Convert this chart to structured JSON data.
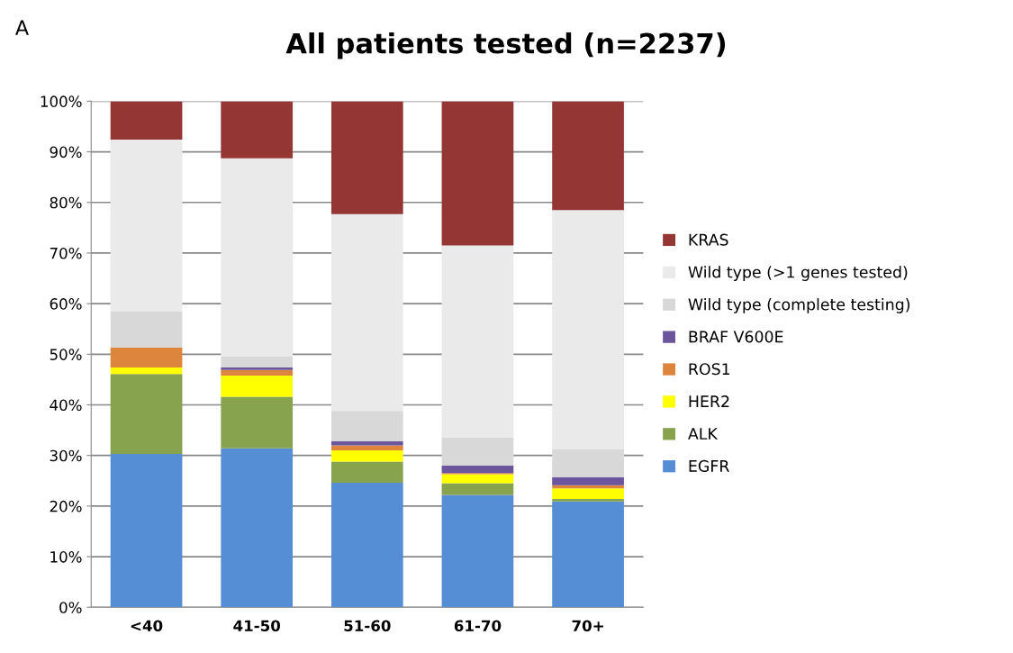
{
  "chart_data": {
    "type": "bar",
    "stacked": true,
    "title": "All patients tested (n=2237)",
    "annotations": [
      "A"
    ],
    "categories": [
      "<40",
      "41-50",
      "51-60",
      "61-70",
      "70+"
    ],
    "series": [
      {
        "name": "EGFR",
        "color": "#558ed5",
        "values": [
          30.3,
          31.4,
          24.6,
          22.2,
          20.9
        ]
      },
      {
        "name": "ALK",
        "color": "#88a34d",
        "values": [
          15.8,
          10.2,
          4.2,
          2.3,
          0.5
        ]
      },
      {
        "name": "HER2",
        "color": "#ffff00",
        "values": [
          1.3,
          4.2,
          2.2,
          1.8,
          2.1
        ]
      },
      {
        "name": "ROS1",
        "color": "#dd853c",
        "values": [
          3.9,
          1.1,
          1.0,
          0.2,
          0.6
        ]
      },
      {
        "name": "BRAF V600E",
        "color": "#6b559c",
        "values": [
          0,
          0.5,
          0.8,
          1.5,
          1.6
        ]
      },
      {
        "name": "Wild type (complete testing)",
        "color": "#d8d8d8",
        "values": [
          7.1,
          2.2,
          6.0,
          5.6,
          5.5
        ]
      },
      {
        "name": "Wild type (>1 genes tested)",
        "color": "#eaeaea",
        "values": [
          34.0,
          39.1,
          38.9,
          37.9,
          47.3
        ]
      },
      {
        "name": "KRAS",
        "color": "#943634",
        "values": [
          7.6,
          11.3,
          22.3,
          28.5,
          21.5
        ]
      }
    ],
    "ylim": [
      0,
      100
    ],
    "yticks": [
      {
        "value": 0,
        "label": "0%"
      },
      {
        "value": 10,
        "label": "10%"
      },
      {
        "value": 20,
        "label": "20%"
      },
      {
        "value": 30,
        "label": "30%"
      },
      {
        "value": 40,
        "label": "40%"
      },
      {
        "value": 50,
        "label": "50%"
      },
      {
        "value": 60,
        "label": "60%"
      },
      {
        "value": 70,
        "label": "70%"
      },
      {
        "value": 80,
        "label": "80%"
      },
      {
        "value": 90,
        "label": "90%"
      },
      {
        "value": 100,
        "label": "100%"
      }
    ],
    "grid": "y",
    "legend": "right"
  }
}
